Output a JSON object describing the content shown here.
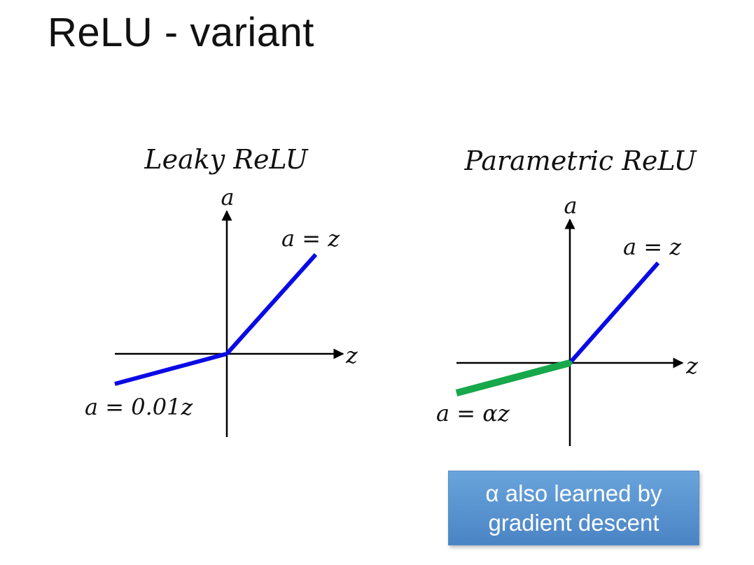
{
  "slide": {
    "title": "ReLU - variant"
  },
  "colors": {
    "positive_line": "#0a0ae6",
    "leaky_negative_line": "#0a0ae6",
    "parametric_negative_line": "#16a84a",
    "axis": "#000000",
    "callout_bg": "#5b95d3"
  },
  "leaky": {
    "heading": "Leaky ReLU",
    "y_axis_label": "a",
    "x_axis_label": "z",
    "positive_label": "a = z",
    "negative_label": "a = 0.01z"
  },
  "parametric": {
    "heading": "Parametric ReLU",
    "y_axis_label": "a",
    "x_axis_label": "z",
    "positive_label": "a = z",
    "negative_label": "a = αz"
  },
  "callout": {
    "line1": "α also learned by",
    "line2": "gradient descent"
  }
}
